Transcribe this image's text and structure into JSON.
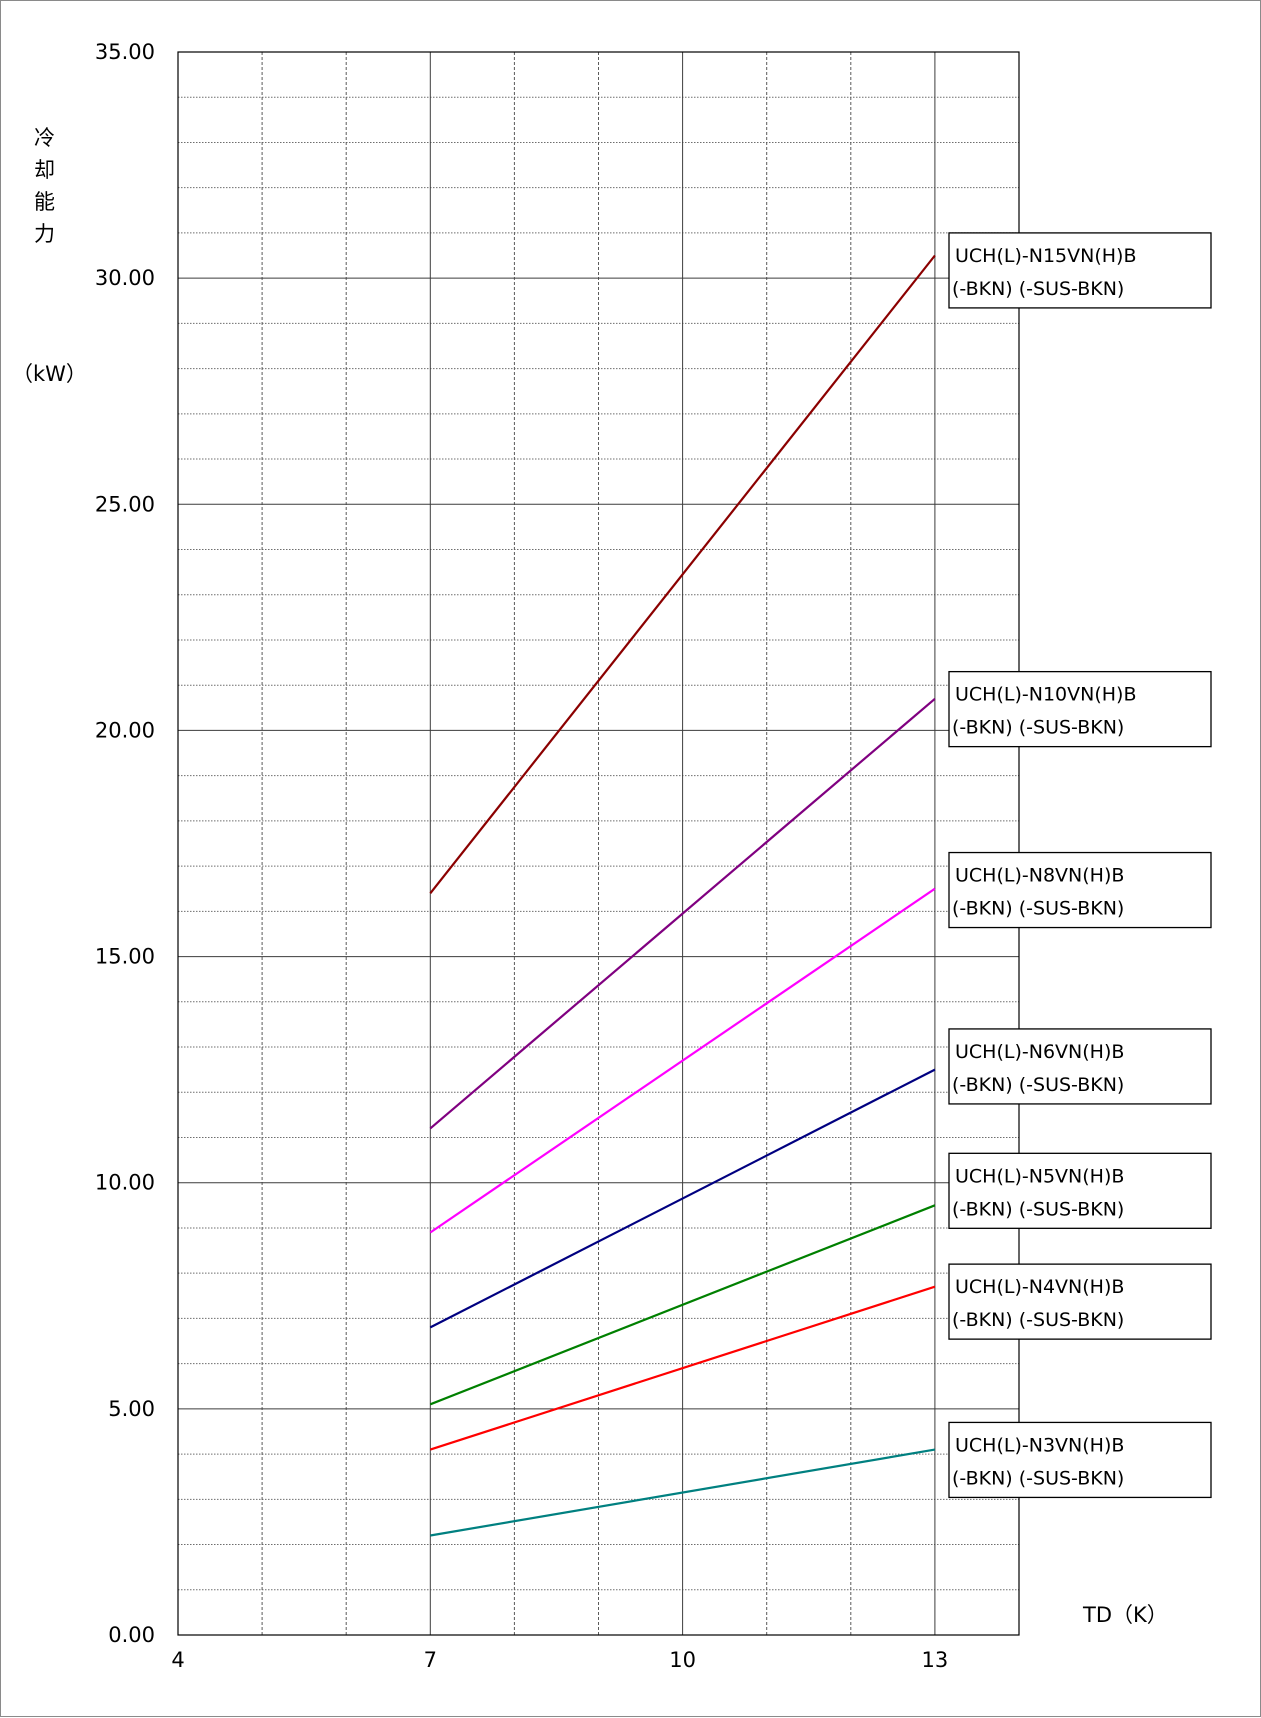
{
  "chart_data": {
    "type": "line",
    "xlabel": "TD（K）",
    "ylabel_chars": [
      "冷",
      "却",
      "能",
      "力"
    ],
    "ylabel_unit": "（kW）",
    "xlim": [
      4,
      14
    ],
    "ylim": [
      0,
      35
    ],
    "x_ticks": [
      4,
      7,
      10,
      13
    ],
    "x_tick_labels": [
      "4",
      "7",
      "10",
      "13"
    ],
    "y_ticks": [
      0,
      5,
      10,
      15,
      20,
      25,
      30,
      35
    ],
    "y_tick_labels": [
      "0.00",
      "5.00",
      "10.00",
      "15.00",
      "20.00",
      "25.00",
      "30.00",
      "35.00"
    ],
    "grid": true,
    "series": [
      {
        "name": "UCH(L)-N15VN(H)B",
        "name_line2": "(-BKN) (-SUS-BKN)",
        "color": "#8B0000",
        "x": [
          7,
          13
        ],
        "y": [
          16.4,
          30.5
        ],
        "label_y": 31.0
      },
      {
        "name": "UCH(L)-N10VN(H)B",
        "name_line2": "(-BKN) (-SUS-BKN)",
        "color": "#800080",
        "x": [
          7,
          13
        ],
        "y": [
          11.2,
          20.7
        ],
        "label_y": 21.3
      },
      {
        "name": "UCH(L)-N8VN(H)B",
        "name_line2": "(-BKN) (-SUS-BKN)",
        "color": "#FF00FF",
        "x": [
          7,
          13
        ],
        "y": [
          8.9,
          16.5
        ],
        "label_y": 17.3
      },
      {
        "name": "UCH(L)-N6VN(H)B",
        "name_line2": "(-BKN) (-SUS-BKN)",
        "color": "#000080",
        "x": [
          7,
          13
        ],
        "y": [
          6.8,
          12.5
        ],
        "label_y": 13.4
      },
      {
        "name": "UCH(L)-N5VN(H)B",
        "name_line2": "(-BKN) (-SUS-BKN)",
        "color": "#008000",
        "x": [
          7,
          13
        ],
        "y": [
          5.1,
          9.5
        ],
        "label_y": 10.65
      },
      {
        "name": "UCH(L)-N4VN(H)B",
        "name_line2": "(-BKN) (-SUS-BKN)",
        "color": "#FF0000",
        "x": [
          7,
          13
        ],
        "y": [
          4.1,
          7.7
        ],
        "label_y": 8.2
      },
      {
        "name": "UCH(L)-N3VN(H)B",
        "name_line2": "(-BKN) (-SUS-BKN)",
        "color": "#008080",
        "x": [
          7,
          13
        ],
        "y": [
          2.2,
          4.1
        ],
        "label_y": 4.7
      }
    ]
  }
}
